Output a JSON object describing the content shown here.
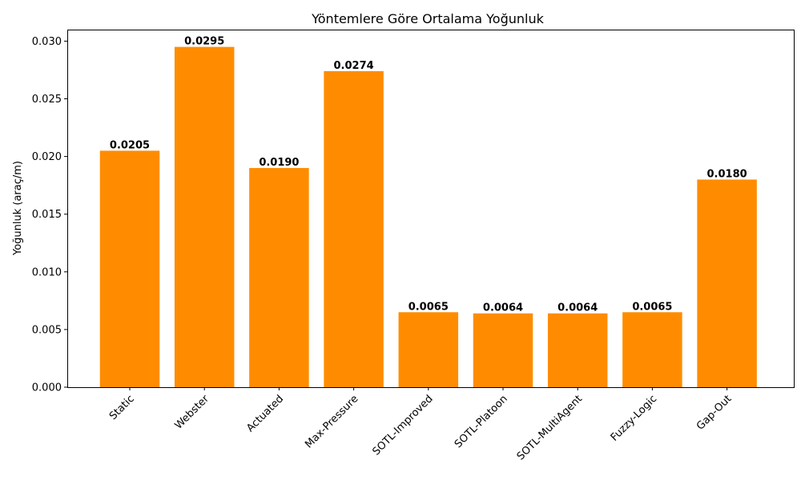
{
  "chart_data": {
    "type": "bar",
    "title": "Yöntemlere Göre Ortalama Yoğunluk",
    "xlabel": "",
    "ylabel": "Yoğunluk (araç/m)",
    "categories": [
      "Static",
      "Webster",
      "Actuated",
      "Max-Pressure",
      "SOTL-Improved",
      "SOTL-Platoon",
      "SOTL-MultiAgent",
      "Fuzzy-Logic",
      "Gap-Out"
    ],
    "values": [
      0.0205,
      0.0295,
      0.019,
      0.0274,
      0.0065,
      0.0064,
      0.0064,
      0.0065,
      0.018
    ],
    "data_labels": [
      "0.0205",
      "0.0295",
      "0.0190",
      "0.0274",
      "0.0065",
      "0.0064",
      "0.0064",
      "0.0065",
      "0.0180"
    ],
    "ylim": [
      0,
      0.031
    ],
    "yticks": [
      "0.000",
      "0.005",
      "0.010",
      "0.015",
      "0.020",
      "0.025",
      "0.030"
    ],
    "ytick_values": [
      0,
      0.005,
      0.01,
      0.015,
      0.02,
      0.025,
      0.03
    ],
    "bar_color": "#ff8c00",
    "grid": false,
    "xtick_rotation_deg": 45
  }
}
